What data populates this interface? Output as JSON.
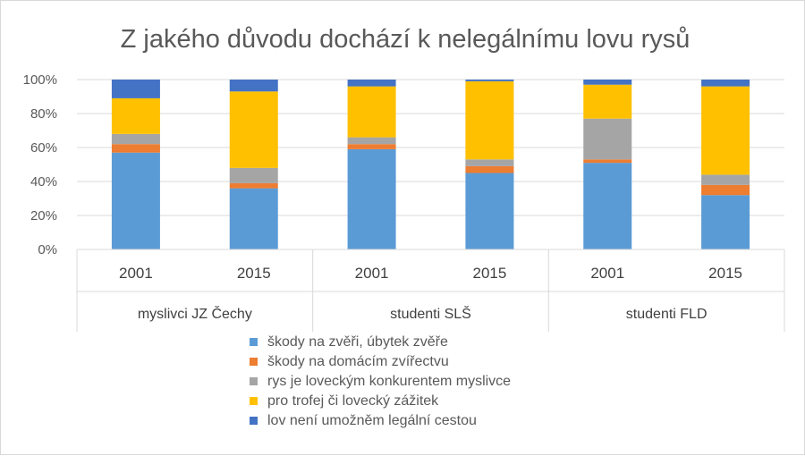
{
  "chart_data": {
    "type": "bar",
    "stacked": true,
    "title": "Z jakého důvodu dochází k nelegálnímu lovu rysů",
    "groups": [
      {
        "label": "myslivci JZ Čechy",
        "categories": [
          "2001",
          "2015"
        ]
      },
      {
        "label": "studenti SLŠ",
        "categories": [
          "2001",
          "2015"
        ]
      },
      {
        "label": "studenti FLD",
        "categories": [
          "2001",
          "2015"
        ]
      }
    ],
    "categories": [
      "2001",
      "2015",
      "2001",
      "2015",
      "2001",
      "2015"
    ],
    "y_ticks": [
      "0%",
      "20%",
      "40%",
      "60%",
      "80%",
      "100%"
    ],
    "ylim": [
      0,
      100
    ],
    "grid": true,
    "legend_position": "bottom",
    "series": [
      {
        "name": "škody na zvěři, úbytek zvěře",
        "color": "#5b9bd5",
        "values": [
          57,
          36,
          59,
          45,
          51,
          32
        ]
      },
      {
        "name": "škody na domácím zvířectvu",
        "color": "#ed7d31",
        "values": [
          5,
          3,
          3,
          4,
          2,
          6
        ]
      },
      {
        "name": "rys je loveckým konkurentem myslivce",
        "color": "#a5a5a5",
        "values": [
          6,
          9,
          4,
          4,
          24,
          6
        ]
      },
      {
        "name": "pro trofej či lovecký zážitek",
        "color": "#ffc000",
        "values": [
          21,
          45,
          30,
          46,
          20,
          52
        ]
      },
      {
        "name": "lov není umožněm legální cestou",
        "color": "#4472c4",
        "values": [
          11,
          7,
          4,
          1,
          3,
          4
        ]
      }
    ]
  }
}
